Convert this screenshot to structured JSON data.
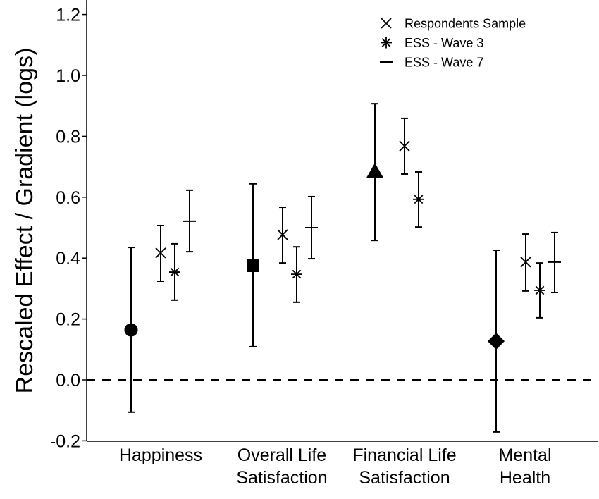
{
  "chart_data": {
    "type": "scatter",
    "subtype": "point-range (dot and error bar)",
    "title": "",
    "xlabel": "",
    "ylabel": "Rescaled Effect / Gradient (logs)",
    "ylim": [
      -0.2,
      1.25
    ],
    "yticks": [
      -0.2,
      0.0,
      0.2,
      0.4,
      0.6,
      0.8,
      1.0,
      1.2
    ],
    "ytick_labels": [
      "-0.2",
      "0.0",
      "0.2",
      "0.4",
      "0.6",
      "0.8",
      "1.0",
      "1.2"
    ],
    "reference_line": {
      "y": 0.0,
      "style": "dashed"
    },
    "grid": false,
    "legend_position": "top-right",
    "legend": [
      {
        "label": "Respondents Sample",
        "marker": "x"
      },
      {
        "label": "ESS - Wave 3",
        "marker": "asterisk"
      },
      {
        "label": "ESS - Wave 7",
        "marker": "dash"
      }
    ],
    "categories": [
      {
        "label_lines": [
          "Happiness"
        ]
      },
      {
        "label_lines": [
          "Overall Life",
          "Satisfaction"
        ]
      },
      {
        "label_lines": [
          "Financial Life",
          "Satisfaction"
        ]
      },
      {
        "label_lines": [
          "Mental",
          "Health"
        ]
      }
    ],
    "points": [
      {
        "category": 0,
        "series": "Main estimate",
        "marker": "circle",
        "value": 0.164,
        "lower": -0.106,
        "upper": 0.435
      },
      {
        "category": 0,
        "series": "Respondents Sample",
        "marker": "x",
        "value": 0.417,
        "lower": 0.324,
        "upper": 0.507
      },
      {
        "category": 0,
        "series": "ESS - Wave 3",
        "marker": "asterisk",
        "value": 0.354,
        "lower": 0.262,
        "upper": 0.447
      },
      {
        "category": 0,
        "series": "ESS - Wave 7",
        "marker": "dash",
        "value": 0.521,
        "lower": 0.421,
        "upper": 0.623
      },
      {
        "category": 1,
        "series": "Main estimate",
        "marker": "square",
        "value": 0.375,
        "lower": 0.109,
        "upper": 0.644
      },
      {
        "category": 1,
        "series": "Respondents Sample",
        "marker": "x",
        "value": 0.477,
        "lower": 0.384,
        "upper": 0.567
      },
      {
        "category": 1,
        "series": "ESS - Wave 3",
        "marker": "asterisk",
        "value": 0.347,
        "lower": 0.255,
        "upper": 0.437
      },
      {
        "category": 1,
        "series": "ESS - Wave 7",
        "marker": "dash",
        "value": 0.5,
        "lower": 0.398,
        "upper": 0.602
      },
      {
        "category": 2,
        "series": "Main estimate",
        "marker": "triangle",
        "value": 0.685,
        "lower": 0.458,
        "upper": 0.907
      },
      {
        "category": 2,
        "series": "Respondents Sample",
        "marker": "x",
        "value": 0.768,
        "lower": 0.676,
        "upper": 0.859
      },
      {
        "category": 2,
        "series": "ESS - Wave 3",
        "marker": "asterisk",
        "value": 0.593,
        "lower": 0.502,
        "upper": 0.683
      },
      {
        "category": 3,
        "series": "Main estimate",
        "marker": "diamond",
        "value": 0.127,
        "lower": -0.171,
        "upper": 0.426
      },
      {
        "category": 3,
        "series": "Respondents Sample",
        "marker": "x",
        "value": 0.387,
        "lower": 0.292,
        "upper": 0.479
      },
      {
        "category": 3,
        "series": "ESS - Wave 3",
        "marker": "asterisk",
        "value": 0.294,
        "lower": 0.204,
        "upper": 0.384
      },
      {
        "category": 3,
        "series": "ESS - Wave 7",
        "marker": "dash",
        "value": 0.387,
        "lower": 0.287,
        "upper": 0.484
      }
    ]
  }
}
